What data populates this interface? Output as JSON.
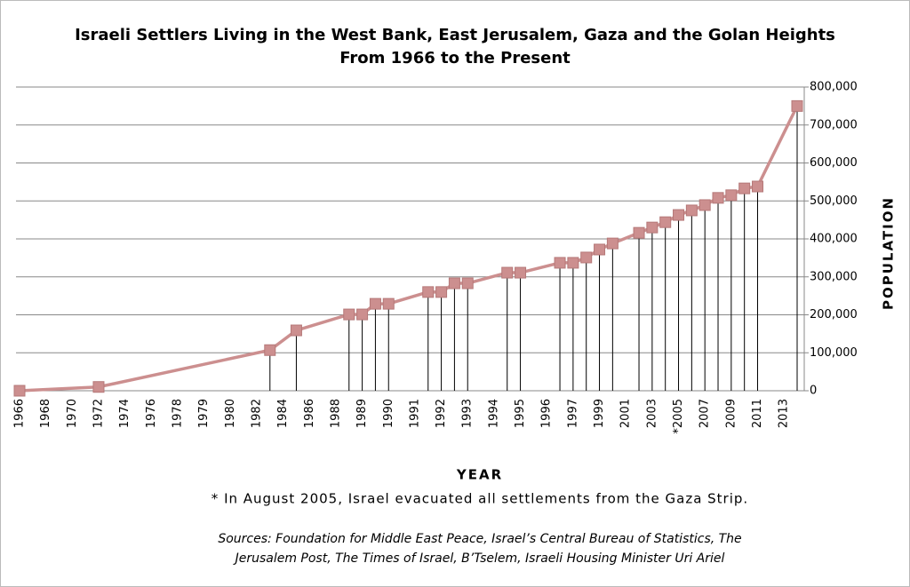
{
  "chart_data": {
    "type": "line",
    "title": [
      "Israeli Settlers Living in the West Bank, East Jerusalem, Gaza and the Golan Heights",
      "From 1966 to the Present"
    ],
    "x_label": "YEAR",
    "y_label": "POPULATION",
    "categories": [
      "1966",
      null,
      "1968",
      null,
      "1970",
      null,
      "1972",
      null,
      "1974",
      null,
      "1976",
      null,
      "1978",
      null,
      "1979",
      null,
      "1980",
      null,
      "1982",
      null,
      "1984",
      null,
      "1986",
      null,
      "1988",
      null,
      "1989",
      null,
      "1990",
      null,
      "1991",
      null,
      "1992",
      null,
      "1993",
      null,
      "1994",
      null,
      "1995",
      null,
      "1996",
      null,
      "1997",
      null,
      "1999",
      null,
      "2001",
      null,
      "2003",
      null,
      "*2005",
      null,
      "2007",
      null,
      "2009",
      null,
      "2011",
      null,
      "2013",
      null
    ],
    "values": [
      0,
      null,
      null,
      null,
      null,
      null,
      10000,
      null,
      null,
      null,
      null,
      null,
      null,
      null,
      null,
      null,
      null,
      null,
      null,
      107000,
      null,
      159000,
      null,
      null,
      null,
      201000,
      201000,
      229000,
      229000,
      null,
      null,
      260000,
      260000,
      283000,
      283000,
      null,
      null,
      311000,
      311000,
      null,
      null,
      337000,
      337000,
      351000,
      372000,
      388000,
      null,
      416000,
      430000,
      444000,
      463000,
      475000,
      489000,
      508000,
      515000,
      533000,
      538000,
      null,
      null,
      750000
    ],
    "color": "#cc8f8f",
    "ylim": [
      0,
      800000
    ],
    "yticks": [
      0,
      {
        "value": 100000,
        "label": "100,000"
      },
      {
        "value": 200000,
        "label": "200,000"
      },
      {
        "value": 300000,
        "label": "300,000"
      },
      {
        "value": 400000,
        "label": "400,000"
      },
      {
        "value": 500000,
        "label": "500,000"
      },
      {
        "value": 600000,
        "label": "600,000"
      },
      {
        "value": 700000,
        "label": "700,000"
      },
      {
        "value": 800000,
        "label": "800,000"
      }
    ],
    "grid": true,
    "drop_lines": true,
    "footnote": "* In August 2005, Israel evacuated all settlements from the Gaza Strip.",
    "sources": [
      "Sources: Foundation for Middle East Peace, Israel’s Central Bureau of Statistics, The",
      "Jerusalem Post, The Times of Israel, B’Tselem, Israeli Housing Minister Uri Ariel"
    ]
  }
}
